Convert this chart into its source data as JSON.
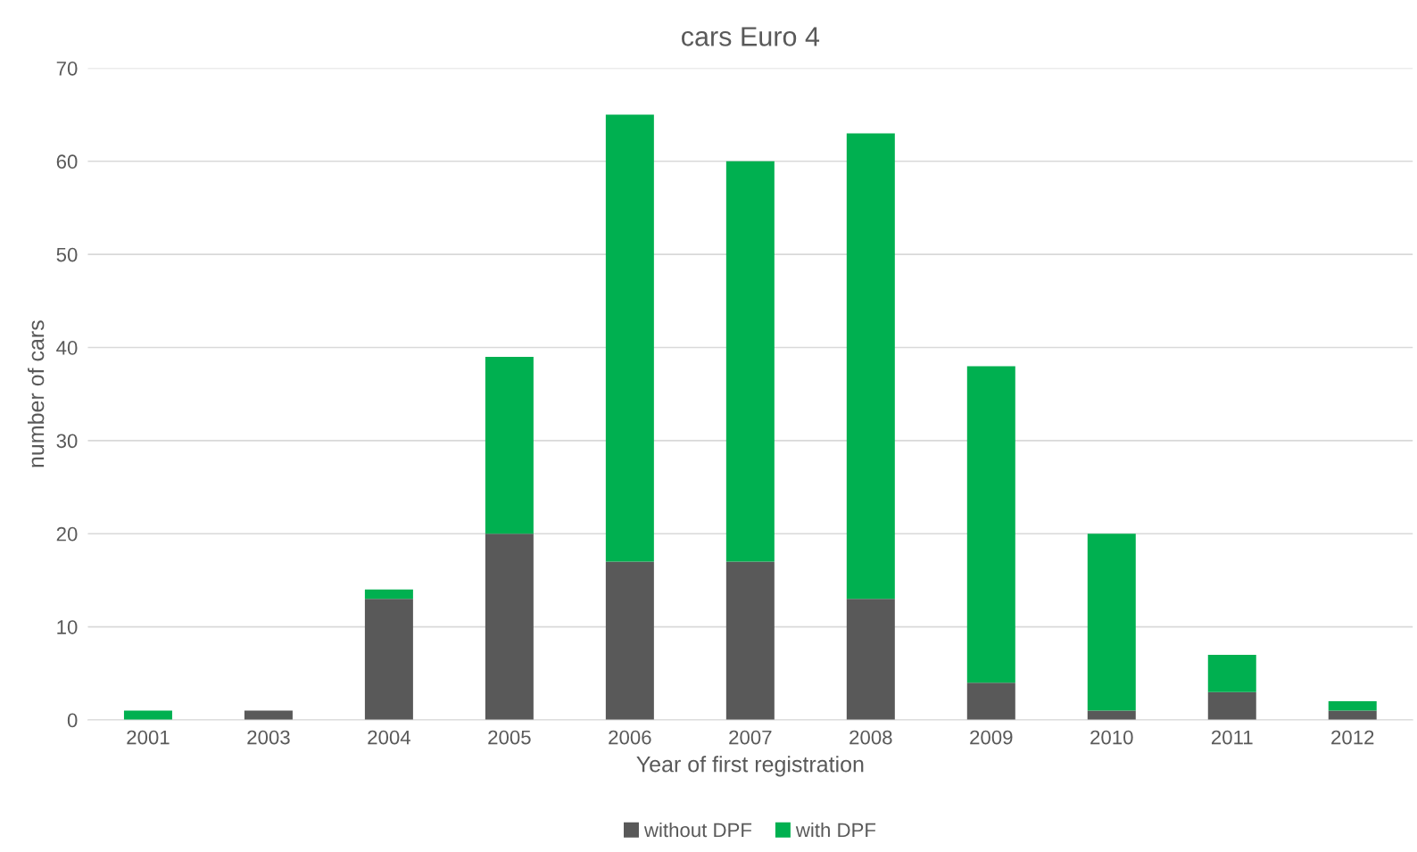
{
  "chart_data": {
    "type": "bar",
    "title": "cars Euro 4",
    "xlabel": "Year of first registration",
    "ylabel": "number of cars",
    "categories": [
      "2001",
      "2003",
      "2004",
      "2005",
      "2006",
      "2007",
      "2008",
      "2009",
      "2010",
      "2011",
      "2012"
    ],
    "stacked": true,
    "series": [
      {
        "name": "without DPF",
        "color": "#595959",
        "values": [
          0,
          1,
          13,
          20,
          17,
          17,
          13,
          4,
          1,
          3,
          1
        ]
      },
      {
        "name": "with DPF",
        "color": "#00b050",
        "values": [
          1,
          0,
          1,
          19,
          48,
          43,
          50,
          34,
          19,
          4,
          1
        ]
      }
    ],
    "ylim": [
      0,
      70
    ],
    "yticks": [
      0,
      10,
      20,
      30,
      40,
      50,
      60,
      70
    ],
    "grid": "y",
    "legend": "bottom"
  }
}
